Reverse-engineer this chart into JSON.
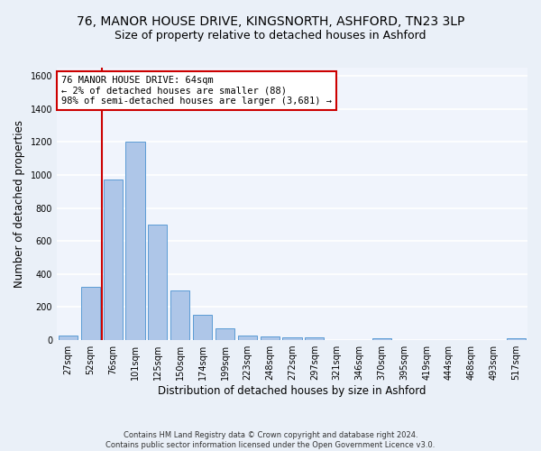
{
  "title1": "76, MANOR HOUSE DRIVE, KINGSNORTH, ASHFORD, TN23 3LP",
  "title2": "Size of property relative to detached houses in Ashford",
  "xlabel": "Distribution of detached houses by size in Ashford",
  "ylabel": "Number of detached properties",
  "categories": [
    "27sqm",
    "52sqm",
    "76sqm",
    "101sqm",
    "125sqm",
    "150sqm",
    "174sqm",
    "199sqm",
    "223sqm",
    "248sqm",
    "272sqm",
    "297sqm",
    "321sqm",
    "346sqm",
    "370sqm",
    "395sqm",
    "419sqm",
    "444sqm",
    "468sqm",
    "493sqm",
    "517sqm"
  ],
  "values": [
    30,
    320,
    970,
    1200,
    700,
    300,
    155,
    70,
    30,
    20,
    15,
    15,
    0,
    0,
    10,
    0,
    0,
    0,
    0,
    0,
    10
  ],
  "bar_color": "#aec6e8",
  "bar_edge_color": "#5b9bd5",
  "annotation_line1": "76 MANOR HOUSE DRIVE: 64sqm",
  "annotation_line2": "← 2% of detached houses are smaller (88)",
  "annotation_line3": "98% of semi-detached houses are larger (3,681) →",
  "annotation_box_color": "#ffffff",
  "annotation_edge_color": "#cc0000",
  "vline_color": "#cc0000",
  "ylim": [
    0,
    1650
  ],
  "yticks": [
    0,
    200,
    400,
    600,
    800,
    1000,
    1200,
    1400,
    1600
  ],
  "footer1": "Contains HM Land Registry data © Crown copyright and database right 2024.",
  "footer2": "Contains public sector information licensed under the Open Government Licence v3.0.",
  "bg_color": "#eaf0f8",
  "plot_bg_color": "#f0f4fc",
  "grid_color": "#ffffff",
  "title1_fontsize": 10,
  "title2_fontsize": 9,
  "xlabel_fontsize": 8.5,
  "ylabel_fontsize": 8.5,
  "tick_fontsize": 7,
  "annotation_fontsize": 7.5,
  "footer_fontsize": 6
}
